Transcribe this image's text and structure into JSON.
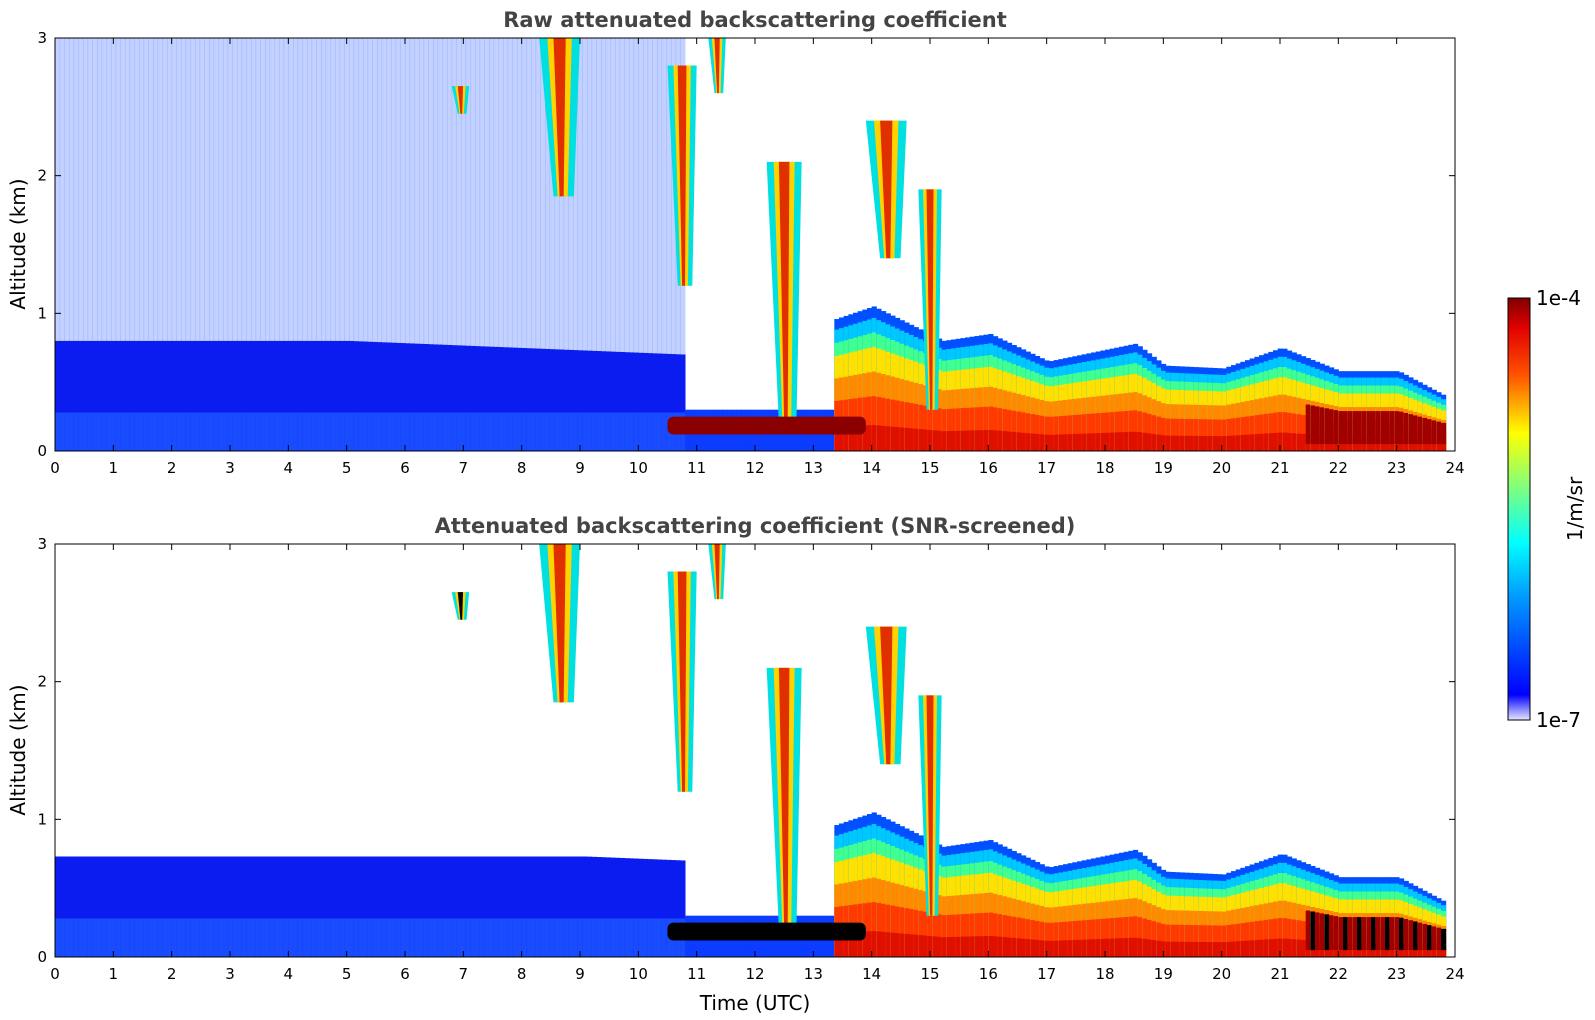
{
  "chart_data": [
    {
      "type": "heatmap",
      "id": "raw",
      "title": "Raw attenuated backscattering coefficient",
      "ylabel": "Altitude (km)",
      "xlabel": "",
      "xlim": [
        0,
        24
      ],
      "ylim": [
        0,
        3
      ],
      "xticks": [
        0,
        1,
        2,
        3,
        4,
        5,
        6,
        7,
        8,
        9,
        10,
        11,
        12,
        13,
        14,
        15,
        16,
        17,
        18,
        19,
        20,
        21,
        22,
        23,
        24
      ],
      "yticks": [
        0,
        1,
        2,
        3
      ],
      "grid": false,
      "features": {
        "boundary_layer_top_km": [
          {
            "t": 0,
            "top": 0.8
          },
          {
            "t": 5,
            "top": 0.8
          },
          {
            "t": 10.8,
            "top": 0.7
          },
          {
            "t": 13.3,
            "top": 0.95
          },
          {
            "t": 14,
            "top": 1.05
          },
          {
            "t": 15.2,
            "top": 0.8
          },
          {
            "t": 16,
            "top": 0.85
          },
          {
            "t": 17,
            "top": 0.65
          },
          {
            "t": 18.5,
            "top": 0.78
          },
          {
            "t": 19,
            "top": 0.62
          },
          {
            "t": 20,
            "top": 0.6
          },
          {
            "t": 21,
            "top": 0.75
          },
          {
            "t": 22,
            "top": 0.58
          },
          {
            "t": 23,
            "top": 0.58
          },
          {
            "t": 23.8,
            "top": 0.4
          }
        ],
        "cloud_streaks": [
          {
            "t0": 8.3,
            "t1": 9.0,
            "z0": 1.85,
            "z1": 3.0
          },
          {
            "t0": 10.5,
            "t1": 11.0,
            "z0": 1.2,
            "z1": 2.8
          },
          {
            "t0": 11.2,
            "t1": 11.5,
            "z0": 2.6,
            "z1": 3.0
          },
          {
            "t0": 12.2,
            "t1": 12.8,
            "z0": 0.2,
            "z1": 2.1
          },
          {
            "t0": 13.9,
            "t1": 14.6,
            "z0": 1.4,
            "z1": 2.4
          },
          {
            "t0": 14.8,
            "t1": 15.2,
            "z0": 0.3,
            "z1": 1.9
          },
          {
            "t0": 6.8,
            "t1": 7.1,
            "z0": 2.45,
            "z1": 2.65
          }
        ],
        "dense_layer": [
          {
            "t0": 10.5,
            "t1": 13.9,
            "z0": 0.12,
            "z1": 0.25
          }
        ]
      }
    },
    {
      "type": "heatmap",
      "id": "screened",
      "title": "Attenuated backscattering coefficient (SNR-screened)",
      "ylabel": "Altitude (km)",
      "xlabel": "Time (UTC)",
      "xlim": [
        0,
        24
      ],
      "ylim": [
        0,
        3
      ],
      "xticks": [
        0,
        1,
        2,
        3,
        4,
        5,
        6,
        7,
        8,
        9,
        10,
        11,
        12,
        13,
        14,
        15,
        16,
        17,
        18,
        19,
        20,
        21,
        22,
        23,
        24
      ],
      "yticks": [
        0,
        1,
        2,
        3
      ],
      "grid": false
    }
  ],
  "colorbar": {
    "label": "1/m/sr",
    "max_label": "1e-4",
    "min_label": "1e-7",
    "scale": "log",
    "colormap": "jet",
    "under_color": "#ffffff"
  }
}
